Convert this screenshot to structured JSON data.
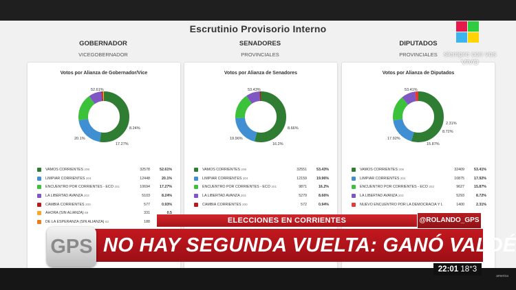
{
  "title": "Escrutinio Provisorio Interno",
  "columns": [
    {
      "heading": "GOBERNADOR",
      "subheading": "VICEGOBERNADOR",
      "panel_title": "Votos por Alianza de Gobernador/Vice",
      "chart_labels": [
        "52.61%",
        "8.24%",
        "17.27%",
        "20.1%"
      ],
      "rows": [
        {
          "name": "VAMOS CORRIENTES",
          "num": "206",
          "votes": "32578",
          "pct": "52.61%",
          "value": 52.61,
          "color": "#2e7d32"
        },
        {
          "name": "LIMPIAR CORRIENTES",
          "num": "204",
          "votes": "12448",
          "pct": "20.1%",
          "value": 20.1,
          "color": "#3f8fd2"
        },
        {
          "name": "ENCUENTRO POR CORRIENTES - ECO",
          "num": "201",
          "votes": "10694",
          "pct": "17.27%",
          "value": 17.27,
          "color": "#3cc13b"
        },
        {
          "name": "LA LIBERTAD AVANZA",
          "num": "203",
          "votes": "5103",
          "pct": "8.24%",
          "value": 8.24,
          "color": "#7e57c2"
        },
        {
          "name": "CAMBIÁ CORRIENTES",
          "num": "200",
          "votes": "577",
          "pct": "0.93%",
          "value": 0.93,
          "color": "#b71c1c"
        },
        {
          "name": "AHORA (SIN ALIANZA)",
          "num": "69",
          "votes": "331",
          "pct": "0.5",
          "value": 0.53,
          "color": "#f9a825"
        },
        {
          "name": "DE LA ESPERANZA (SIN ALIANZA)",
          "num": "63",
          "votes": "188",
          "pct": "",
          "value": 0.3,
          "color": "#e67e22"
        }
      ]
    },
    {
      "heading": "SENADORES",
      "subheading": "PROVINCIALES",
      "panel_title": "Votos por Alianza de Senadores",
      "chart_labels": [
        "53.43%",
        "8.66%",
        "16.2%",
        "19.96%"
      ],
      "rows": [
        {
          "name": "VAMOS CORRIENTES",
          "num": "206",
          "votes": "32551",
          "pct": "53.43%",
          "value": 53.43,
          "color": "#2e7d32"
        },
        {
          "name": "LIMPIAR CORRIENTES",
          "num": "204",
          "votes": "12159",
          "pct": "19.96%",
          "value": 19.96,
          "color": "#3f8fd2"
        },
        {
          "name": "ENCUENTRO POR CORRIENTES - ECO",
          "num": "201",
          "votes": "9871",
          "pct": "16.2%",
          "value": 16.2,
          "color": "#3cc13b"
        },
        {
          "name": "LA LIBERTAD AVANZA",
          "num": "203",
          "votes": "5279",
          "pct": "8.66%",
          "value": 8.66,
          "color": "#7e57c2"
        },
        {
          "name": "CAMBIÁ CORRIENTES",
          "num": "200",
          "votes": "572",
          "pct": "0.94%",
          "value": 0.94,
          "color": "#b71c1c"
        }
      ]
    },
    {
      "heading": "DIPUTADOS",
      "subheading": "PROVINCIALES",
      "panel_title": "Votos por Alianza de Diputados",
      "chart_labels": [
        "53.41%",
        "2.31%",
        "8.72%",
        "15.87%",
        "17.92%"
      ],
      "rows": [
        {
          "name": "VAMOS CORRIENTES",
          "num": "206",
          "votes": "32409",
          "pct": "53.41%",
          "value": 53.41,
          "color": "#2e7d32"
        },
        {
          "name": "LIMPIAR CORRIENTES",
          "num": "204",
          "votes": "10875",
          "pct": "17.92%",
          "value": 17.92,
          "color": "#3f8fd2"
        },
        {
          "name": "ENCUENTRO POR CORRIENTES - ECO",
          "num": "202",
          "votes": "9627",
          "pct": "15.87%",
          "value": 15.87,
          "color": "#3cc13b"
        },
        {
          "name": "LA LIBERTAD AVANZA",
          "num": "203",
          "votes": "5293",
          "pct": "8.72%",
          "value": 8.72,
          "color": "#7e57c2"
        },
        {
          "name": "NUEVO ENCUENTRO POR LA DEMOCRACIA Y LA",
          "num": "",
          "votes": "1400",
          "pct": "2.31%",
          "value": 2.31,
          "color": "#e53935"
        }
      ]
    }
  ],
  "broadcast": {
    "logo_colors": [
      "#e6194b",
      "#2ecc40",
      "#3cb4f0",
      "#ffd400"
    ],
    "slogan_line1": "siempre con vos",
    "slogan_line2": "VIVO",
    "supertitle": "ELECCIONES EN CORRIENTES",
    "handle": "@ROLANDO_GPS",
    "headline": "NO HAY SEGUNDA VUELTA: GANÓ VALDÉS",
    "program": "GPS",
    "time": "22:01",
    "temperature": "18°3",
    "channel_corner": "america"
  }
}
